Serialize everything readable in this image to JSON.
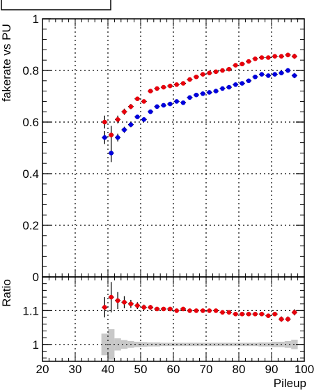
{
  "chart_data": [
    {
      "type": "scatter",
      "panel": "main",
      "ylabel": "fakerate vs PU",
      "xlabel": "",
      "xlim": [
        20,
        100
      ],
      "ylim": [
        0,
        1.0
      ],
      "grid": true,
      "y_ticks": [
        "0",
        "0.2",
        "0.4",
        "0.6",
        "0.8",
        "1"
      ],
      "series": [
        {
          "color": "#e8000b",
          "x": [
            39,
            41,
            43,
            45,
            47,
            49,
            51,
            53,
            55,
            57,
            59,
            61,
            63,
            65,
            67,
            69,
            71,
            73,
            75,
            77,
            79,
            81,
            83,
            85,
            87,
            89,
            91,
            93,
            95,
            97
          ],
          "y": [
            0.6,
            0.55,
            0.61,
            0.64,
            0.66,
            0.69,
            0.68,
            0.72,
            0.73,
            0.735,
            0.74,
            0.745,
            0.75,
            0.765,
            0.775,
            0.785,
            0.79,
            0.795,
            0.8,
            0.805,
            0.82,
            0.825,
            0.835,
            0.845,
            0.85,
            0.85,
            0.855,
            0.855,
            0.86,
            0.855
          ],
          "yerr": [
            0.025,
            0.035,
            0.015,
            0.012,
            0.01,
            0.008,
            0.008,
            0.007,
            0.007,
            0.007,
            0.006,
            0.006,
            0.006,
            0.006,
            0.006,
            0.006,
            0.006,
            0.006,
            0.006,
            0.006,
            0.006,
            0.006,
            0.006,
            0.006,
            0.006,
            0.006,
            0.007,
            0.008,
            0.009,
            0.01
          ]
        },
        {
          "color": "#0000dd",
          "x": [
            39,
            41,
            43,
            45,
            47,
            49,
            51,
            53,
            55,
            57,
            59,
            61,
            63,
            65,
            67,
            69,
            71,
            73,
            75,
            77,
            79,
            81,
            83,
            85,
            87,
            89,
            91,
            93,
            95,
            97
          ],
          "y": [
            0.54,
            0.48,
            0.54,
            0.57,
            0.59,
            0.62,
            0.61,
            0.64,
            0.66,
            0.665,
            0.67,
            0.68,
            0.675,
            0.695,
            0.705,
            0.71,
            0.715,
            0.72,
            0.73,
            0.735,
            0.745,
            0.75,
            0.76,
            0.775,
            0.785,
            0.78,
            0.785,
            0.79,
            0.8,
            0.78
          ],
          "yerr": [
            0.025,
            0.035,
            0.015,
            0.012,
            0.01,
            0.008,
            0.008,
            0.007,
            0.007,
            0.007,
            0.006,
            0.006,
            0.006,
            0.006,
            0.006,
            0.006,
            0.006,
            0.006,
            0.006,
            0.006,
            0.006,
            0.006,
            0.006,
            0.006,
            0.006,
            0.006,
            0.007,
            0.008,
            0.009,
            0.01
          ]
        }
      ]
    },
    {
      "type": "scatter",
      "panel": "ratio",
      "ylabel": "Ratio",
      "xlabel": "Pileup",
      "xlim": [
        20,
        100
      ],
      "ylim": [
        0.95,
        1.2
      ],
      "grid": true,
      "x_ticks": [
        "20",
        "30",
        "40",
        "50",
        "60",
        "70",
        "80",
        "90",
        "100"
      ],
      "y_ticks": [
        "1",
        "1.1"
      ],
      "series": [
        {
          "color": "#e8000b",
          "x": [
            39,
            41,
            43,
            45,
            47,
            49,
            51,
            53,
            55,
            57,
            59,
            61,
            63,
            65,
            67,
            69,
            71,
            73,
            75,
            77,
            79,
            81,
            83,
            85,
            87,
            89,
            91,
            93,
            95,
            97
          ],
          "y": [
            1.11,
            1.14,
            1.13,
            1.125,
            1.12,
            1.115,
            1.11,
            1.11,
            1.105,
            1.105,
            1.105,
            1.1,
            1.105,
            1.1,
            1.1,
            1.1,
            1.1,
            1.1,
            1.095,
            1.095,
            1.09,
            1.09,
            1.09,
            1.09,
            1.09,
            1.085,
            1.09,
            1.075,
            1.075,
            1.095
          ],
          "yerr": [
            0.03,
            0.045,
            0.025,
            0.018,
            0.012,
            0.01,
            0.008,
            0.007,
            0.006,
            0.006,
            0.005,
            0.005,
            0.005,
            0.005,
            0.005,
            0.005,
            0.005,
            0.005,
            0.005,
            0.005,
            0.005,
            0.005,
            0.005,
            0.005,
            0.005,
            0.005,
            0.006,
            0.008,
            0.008,
            0.009
          ]
        }
      ],
      "band": {
        "color": "#c8c8c8",
        "x": [
          39,
          41,
          43,
          45,
          47,
          49,
          51,
          53,
          55,
          57,
          59,
          61,
          63,
          65,
          67,
          69,
          71,
          73,
          75,
          77,
          79,
          81,
          83,
          85,
          87,
          89,
          91,
          93,
          95,
          97
        ],
        "halfwidth": [
          0.032,
          0.045,
          0.018,
          0.013,
          0.01,
          0.008,
          0.007,
          0.006,
          0.006,
          0.005,
          0.005,
          0.005,
          0.005,
          0.005,
          0.005,
          0.005,
          0.005,
          0.005,
          0.005,
          0.005,
          0.005,
          0.005,
          0.005,
          0.005,
          0.006,
          0.006,
          0.008,
          0.008,
          0.01,
          0.014
        ]
      }
    }
  ]
}
